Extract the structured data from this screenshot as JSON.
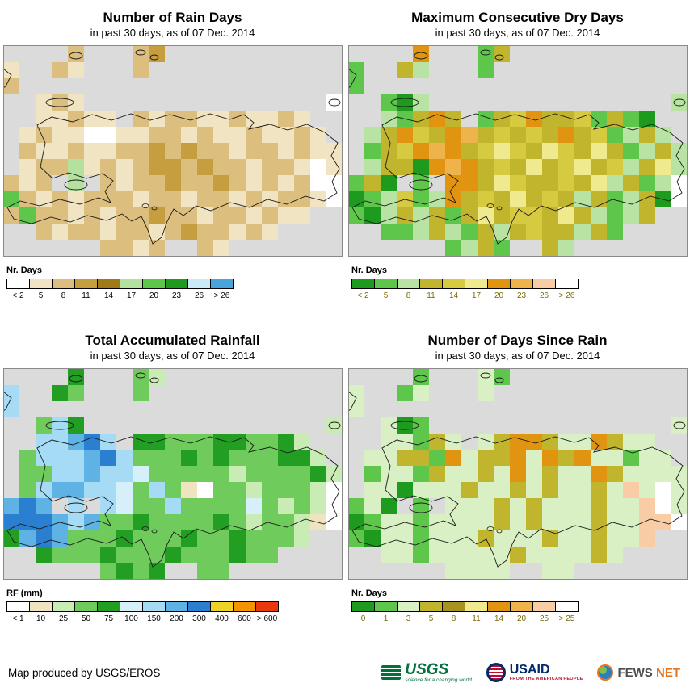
{
  "sea_color": "#DBDBDB",
  "panels": [
    {
      "title": "Number of Rain Days",
      "subtitle": "in past 30 days, as of 07 Dec. 2014",
      "legend_title": "Nr. Days",
      "label_color": "#000000",
      "palette": [
        "#FFFFFF",
        "#F0E4C2",
        "#DCBE7E",
        "#C69E3F",
        "#A07A16",
        "#B4E19E",
        "#5FC64C",
        "#1E9A1E",
        "#C9EBF8",
        "#47A4DC"
      ],
      "legend_labels": [
        "< 2",
        "5",
        "8",
        "11",
        "14",
        "17",
        "20",
        "23",
        "26",
        "> 26"
      ],
      "grid": [
        "....2...23...........",
        "1..21...2............",
        "2....................",
        "..121...............0",
        "..11211.21221121121..",
        ".1211001122121121121.",
        ".21121122323221221211",
        ".12251212332322122101",
        "212.5.212232232121200",
        "621212221221221212210",
        "2622121223221221211..",
        "..212212212322121....",
        "......2212..21......."
      ]
    },
    {
      "title": "Maximum Consecutive Dry Days",
      "subtitle": "in past 30 days, as of 07 Dec. 2014",
      "legend_title": "Nr. Days",
      "label_color": "#7A6A00",
      "palette": [
        "#1E9A1E",
        "#5FC64C",
        "#B9E3A2",
        "#C0B52D",
        "#D6CB40",
        "#EFEA8E",
        "#E0940F",
        "#EFB34C",
        "#F8CDA6",
        "#FFFFFF"
      ],
      "legend_labels": [
        "< 2",
        "5",
        "8",
        "11",
        "14",
        "17",
        "20",
        "23",
        "26",
        "> 26"
      ],
      "grid": [
        "....6...13...........",
        "1..32...1............",
        "1....................",
        "..102...............2",
        "..21363.13463341310..",
        ".2364367343436341232.",
        ".13467634543543531232",
        ".23306763435345342352",
        "130.1.663543343523129",
        "012412634353432312309",
        "1023231353443532123..",
        "..112321323433231....",
        "......1231..32......."
      ]
    },
    {
      "title": "Total Accumulated Rainfall",
      "subtitle": "in past 30 days, as of 07 Dec. 2014",
      "legend_title": "RF (mm)",
      "label_color": "#000000",
      "palette": [
        "#FFFFFF",
        "#EFE3C0",
        "#C9EBB4",
        "#6FCB5B",
        "#229E22",
        "#D6F0FA",
        "#A5DBF5",
        "#5FB3E4",
        "#2B7FD0",
        "#EFD428",
        "#F59300",
        "#E8380C"
      ],
      "legend_labels": [
        "< 1",
        "10",
        "25",
        "50",
        "75",
        "100",
        "150",
        "200",
        "300",
        "400",
        "600",
        "> 600"
      ],
      "grid": [
        "....4...32...........",
        "6..43...3............",
        "6....................",
        "..364...............2",
        "..66786.44333443342..",
        ".3666786333434333442.",
        ".33667665333332333342",
        ".36776653631033233320",
        "787.6.653363333532320",
        "888767334333343233210",
        "4787333433343343332..",
        "..433343334333433....",
        "......3434..33......."
      ]
    },
    {
      "title": "Number of Days Since Rain",
      "subtitle": "in past 30 days, as of 07 Dec. 2014",
      "legend_title": "Nr. Days",
      "label_color": "#7A6A00",
      "palette": [
        "#1E9A1E",
        "#5FC64C",
        "#D8F0C4",
        "#C0B52D",
        "#A89220",
        "#EFEA8E",
        "#E0940F",
        "#EFB34C",
        "#F8CDA6",
        "#FFFFFF"
      ],
      "legend_labels": [
        "0",
        "1",
        "3",
        "5",
        "8",
        "11",
        "14",
        "20",
        "25",
        "> 25"
      ],
      "grid": [
        "....1...21...........",
        "2..12...2............",
        "2....................",
        "..201...............2",
        "..22132.23663226322..",
        ".2233162336263622122.",
        ".12213223262322632222",
        ".22022232232322328292",
        "120.1.222323222322892",
        "012212222323222322889",
        "1022122232223223228..",
        "..221222223222232....",
        "......2222..22......."
      ]
    }
  ],
  "footer": {
    "credit": "Map produced by USGS/EROS",
    "logos": {
      "usgs": {
        "name": "USGS",
        "tagline": "science for a changing world"
      },
      "usaid": {
        "name": "USAID",
        "tagline": "FROM THE AMERICAN PEOPLE"
      },
      "fewsnet": {
        "text_primary": "FEWS",
        "text_secondary": "NET"
      }
    }
  }
}
